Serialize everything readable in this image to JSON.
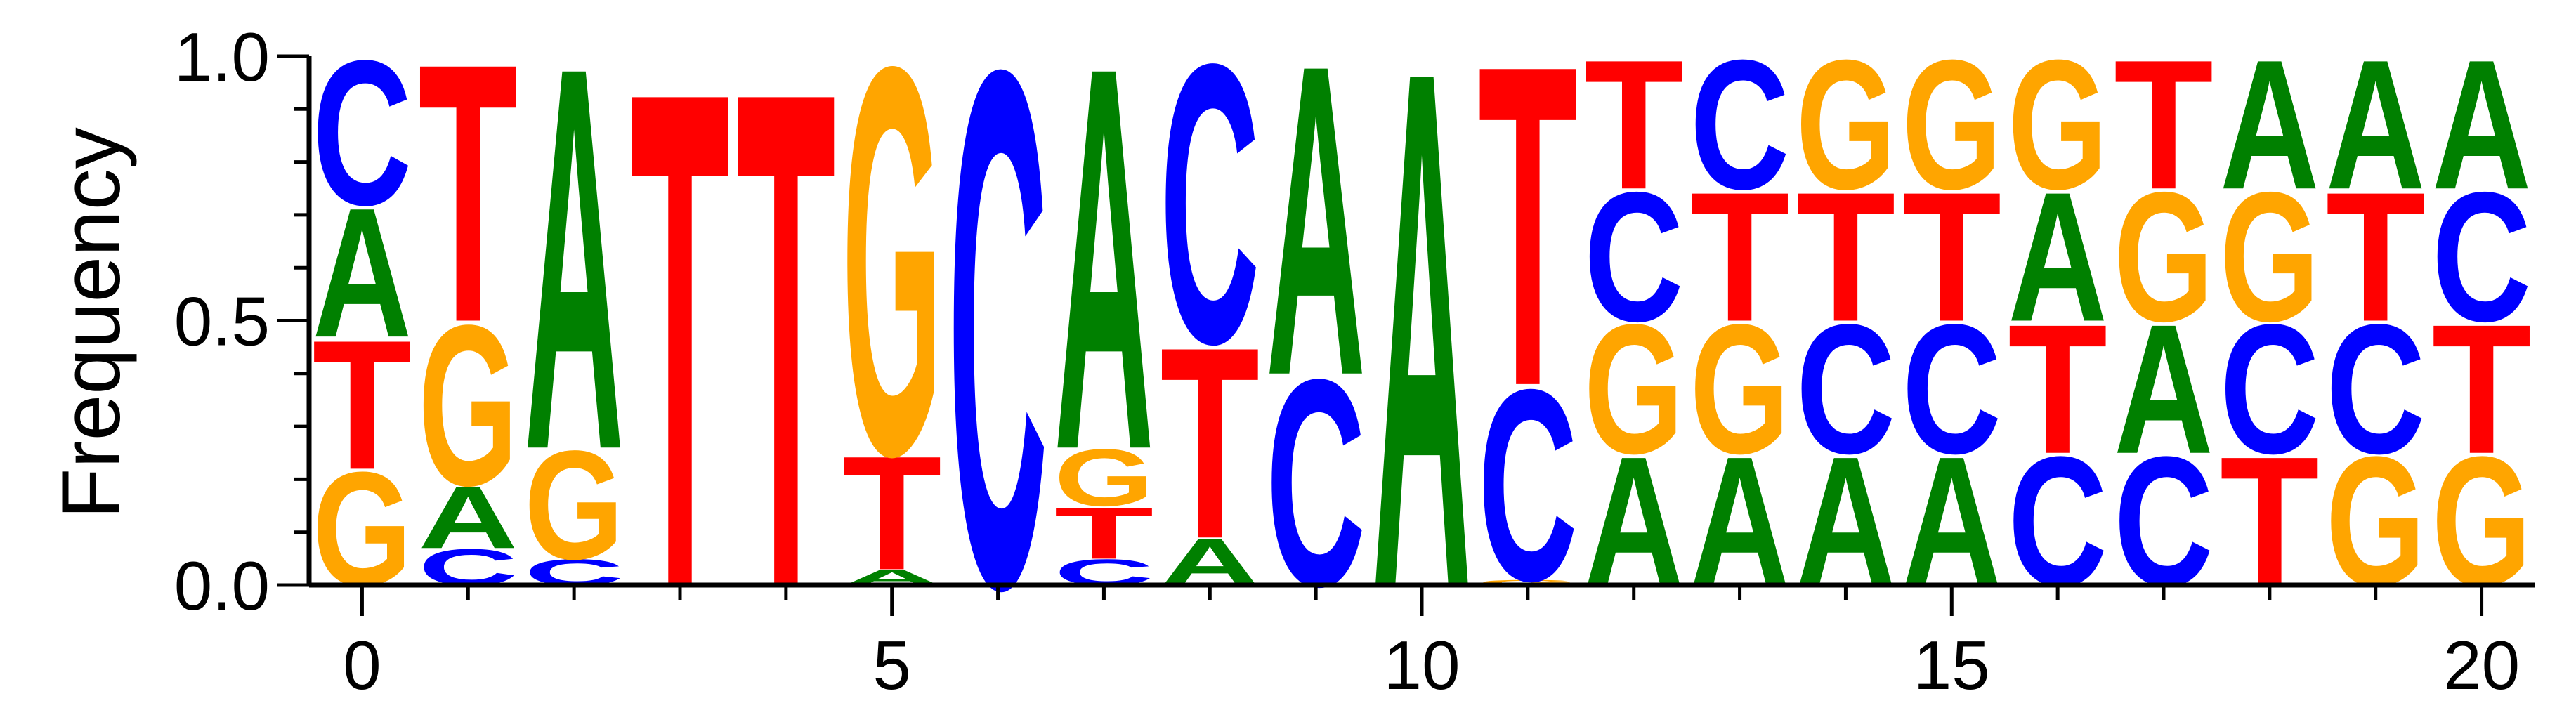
{
  "chart_data": {
    "type": "sequence_logo",
    "ylabel": "Frequency",
    "xlabel": "",
    "xlim": [
      -0.5,
      20.5
    ],
    "ylim": [
      0,
      1
    ],
    "x_ticks": [
      "0",
      "5",
      "10",
      "15",
      "20"
    ],
    "y_ticks": [
      "0.0",
      "0.5",
      "1.0"
    ],
    "colors": {
      "A": "#008000",
      "C": "#0000ff",
      "G": "#ffa500",
      "T": "#ff0000"
    },
    "positions": [
      {
        "pos": 0,
        "stack": [
          [
            "G",
            0.22
          ],
          [
            "T",
            0.25
          ],
          [
            "A",
            0.25
          ],
          [
            "C",
            0.28
          ]
        ]
      },
      {
        "pos": 1,
        "stack": [
          [
            "C",
            0.07
          ],
          [
            "A",
            0.12
          ],
          [
            "G",
            0.31
          ],
          [
            "T",
            0.5
          ]
        ]
      },
      {
        "pos": 2,
        "stack": [
          [
            "C",
            0.05
          ],
          [
            "G",
            0.21
          ],
          [
            "A",
            0.74
          ]
        ]
      },
      {
        "pos": 3,
        "stack": [
          [
            "T",
            0.96
          ]
        ]
      },
      {
        "pos": 4,
        "stack": [
          [
            "T",
            0.96
          ]
        ]
      },
      {
        "pos": 5,
        "stack": [
          [
            "A",
            0.03
          ],
          [
            "T",
            0.22
          ],
          [
            "G",
            0.75
          ]
        ]
      },
      {
        "pos": 6,
        "stack": [
          [
            "C",
            1.0
          ]
        ]
      },
      {
        "pos": 7,
        "stack": [
          [
            "C",
            0.05
          ],
          [
            "T",
            0.1
          ],
          [
            "G",
            0.11
          ],
          [
            "A",
            0.74
          ]
        ]
      },
      {
        "pos": 8,
        "stack": [
          [
            "A",
            0.09
          ],
          [
            "T",
            0.37
          ],
          [
            "C",
            0.54
          ]
        ]
      },
      {
        "pos": 9,
        "stack": [
          [
            "C",
            0.4
          ],
          [
            "A",
            0.6
          ]
        ]
      },
      {
        "pos": 10,
        "stack": [
          [
            "A",
            1.0
          ]
        ]
      },
      {
        "pos": 11,
        "stack": [
          [
            "G",
            0.01
          ],
          [
            "C",
            0.37
          ],
          [
            "T",
            0.62
          ]
        ]
      },
      {
        "pos": 12,
        "stack": [
          [
            "A",
            0.25
          ],
          [
            "G",
            0.25
          ],
          [
            "C",
            0.25
          ],
          [
            "T",
            0.25
          ]
        ]
      },
      {
        "pos": 13,
        "stack": [
          [
            "A",
            0.25
          ],
          [
            "G",
            0.25
          ],
          [
            "T",
            0.25
          ],
          [
            "C",
            0.25
          ]
        ]
      },
      {
        "pos": 14,
        "stack": [
          [
            "A",
            0.25
          ],
          [
            "C",
            0.25
          ],
          [
            "T",
            0.25
          ],
          [
            "G",
            0.25
          ]
        ]
      },
      {
        "pos": 15,
        "stack": [
          [
            "A",
            0.25
          ],
          [
            "C",
            0.25
          ],
          [
            "T",
            0.25
          ],
          [
            "G",
            0.25
          ]
        ]
      },
      {
        "pos": 16,
        "stack": [
          [
            "C",
            0.25
          ],
          [
            "T",
            0.25
          ],
          [
            "A",
            0.25
          ],
          [
            "G",
            0.25
          ]
        ]
      },
      {
        "pos": 17,
        "stack": [
          [
            "C",
            0.25
          ],
          [
            "A",
            0.25
          ],
          [
            "G",
            0.25
          ],
          [
            "T",
            0.25
          ]
        ]
      },
      {
        "pos": 18,
        "stack": [
          [
            "T",
            0.25
          ],
          [
            "C",
            0.25
          ],
          [
            "G",
            0.25
          ],
          [
            "A",
            0.25
          ]
        ]
      },
      {
        "pos": 19,
        "stack": [
          [
            "G",
            0.25
          ],
          [
            "C",
            0.25
          ],
          [
            "T",
            0.25
          ],
          [
            "A",
            0.25
          ]
        ]
      },
      {
        "pos": 20,
        "stack": [
          [
            "G",
            0.25
          ],
          [
            "T",
            0.25
          ],
          [
            "C",
            0.25
          ],
          [
            "A",
            0.25
          ]
        ]
      }
    ]
  }
}
